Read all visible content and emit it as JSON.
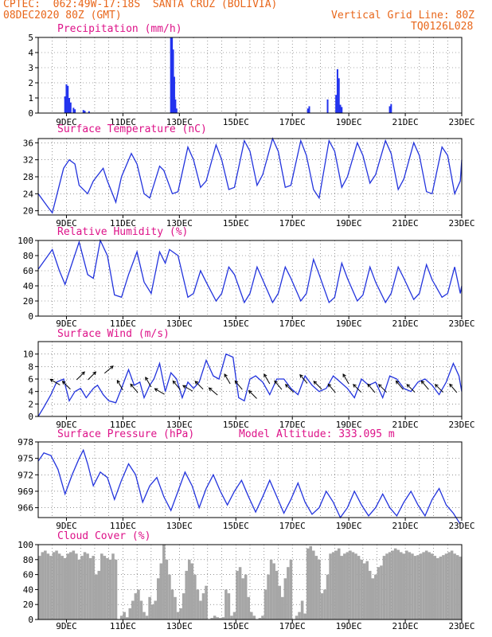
{
  "header": {
    "line1": "CPTEC:  062:49W-17:18S  SANTA CRUZ (BOLIVIA)",
    "date": "08DEC2020 80Z (GMT)",
    "grid_note": "Vertical Grid Line: 80Z",
    "model_code": "TQ0126L028"
  },
  "colors": {
    "accent": "#e8661a",
    "title": "#dd1188",
    "line": "#2233dd",
    "bar": "#2233ee",
    "cloud": "#a6a6a6"
  },
  "x_tick_labels": [
    "9DEC",
    "11DEC",
    "13DEC",
    "15DEC",
    "17DEC",
    "19DEC",
    "21DEC",
    "23DEC"
  ],
  "chart_data": [
    {
      "type": "bar",
      "title": "Precipitation (mm/h)",
      "x_unit": "days since 08DEC2020 00Z",
      "xlim": [
        0.0,
        15.0
      ],
      "ylim": [
        0,
        5
      ],
      "yticks": [
        0,
        1,
        2,
        3,
        4,
        5
      ],
      "grid": true,
      "x": [
        0.95,
        1.0,
        1.05,
        1.1,
        1.15,
        1.25,
        1.3,
        1.6,
        1.65,
        1.8,
        4.7,
        4.74,
        4.78,
        4.82,
        4.86,
        4.9,
        9.55,
        9.6,
        10.25,
        10.55,
        10.6,
        10.65,
        10.7,
        10.75,
        12.45,
        12.5
      ],
      "values": [
        1.1,
        1.9,
        1.8,
        1.0,
        0.7,
        0.35,
        0.25,
        0.2,
        0.15,
        0.12,
        5.0,
        5.0,
        4.2,
        2.4,
        0.9,
        0.3,
        0.3,
        0.45,
        0.9,
        1.2,
        2.9,
        2.3,
        0.55,
        0.4,
        0.45,
        0.6
      ]
    },
    {
      "type": "line",
      "title": "Surface Temperature (nC)",
      "x_unit": "days since 08DEC2020 00Z",
      "xlim": [
        0.0,
        15.0
      ],
      "ylim": [
        19,
        37
      ],
      "yticks": [
        20,
        24,
        28,
        32,
        36
      ],
      "grid": true,
      "x": [
        0.0,
        0.35,
        0.5,
        0.9,
        1.1,
        1.3,
        1.45,
        1.75,
        1.95,
        2.3,
        2.45,
        2.75,
        2.95,
        3.3,
        3.5,
        3.75,
        3.95,
        4.3,
        4.45,
        4.75,
        4.95,
        5.3,
        5.5,
        5.75,
        5.95,
        6.3,
        6.5,
        6.75,
        6.95,
        7.3,
        7.5,
        7.75,
        7.95,
        8.3,
        8.5,
        8.75,
        8.95,
        9.3,
        9.5,
        9.75,
        9.95,
        10.3,
        10.5,
        10.75,
        10.95,
        11.3,
        11.5,
        11.75,
        11.95,
        12.3,
        12.5,
        12.75,
        12.95,
        13.3,
        13.5,
        13.75,
        13.95,
        14.3,
        14.5,
        14.75,
        14.95,
        15.0
      ],
      "values": [
        24,
        20.8,
        19.5,
        30,
        32,
        31,
        26,
        24,
        27,
        30,
        27,
        22,
        28,
        33.5,
        31,
        24,
        23,
        30.5,
        29.5,
        24,
        24.5,
        35,
        32,
        25.5,
        27,
        35.5,
        32,
        25,
        25.5,
        36.5,
        34,
        26,
        28.5,
        37,
        34,
        25.5,
        26,
        36.5,
        33,
        25,
        23,
        36.5,
        34,
        25.5,
        28,
        36,
        33,
        26.5,
        28.5,
        36.5,
        33.5,
        25,
        27.5,
        36,
        33,
        24.5,
        24,
        35,
        33,
        24,
        27,
        32
      ]
    },
    {
      "type": "line",
      "title": "Relative Humidity (%)",
      "x_unit": "days since 08DEC2020 00Z",
      "xlim": [
        0.0,
        15.0
      ],
      "ylim": [
        0,
        100
      ],
      "yticks": [
        0,
        20,
        40,
        60,
        80,
        100
      ],
      "grid": true,
      "x": [
        0.0,
        0.5,
        0.75,
        0.95,
        1.45,
        1.75,
        1.95,
        2.2,
        2.45,
        2.7,
        2.95,
        3.2,
        3.5,
        3.75,
        4.0,
        4.3,
        4.5,
        4.65,
        4.95,
        5.3,
        5.5,
        5.75,
        5.95,
        6.3,
        6.5,
        6.75,
        6.95,
        7.3,
        7.5,
        7.75,
        7.95,
        8.3,
        8.5,
        8.75,
        8.95,
        9.3,
        9.5,
        9.75,
        9.95,
        10.3,
        10.5,
        10.75,
        10.95,
        11.3,
        11.5,
        11.75,
        11.95,
        12.3,
        12.5,
        12.75,
        12.95,
        13.3,
        13.5,
        13.75,
        13.95,
        14.3,
        14.5,
        14.75,
        14.95,
        15.0
      ],
      "values": [
        62,
        88,
        60,
        42,
        98,
        55,
        50,
        100,
        80,
        28,
        25,
        55,
        85,
        45,
        30,
        85,
        70,
        88,
        80,
        25,
        30,
        60,
        45,
        20,
        30,
        65,
        55,
        18,
        30,
        65,
        48,
        18,
        30,
        65,
        50,
        20,
        30,
        75,
        55,
        18,
        25,
        70,
        50,
        20,
        28,
        65,
        45,
        18,
        30,
        65,
        50,
        22,
        30,
        68,
        48,
        25,
        30,
        65,
        30,
        40
      ]
    },
    {
      "type": "line",
      "title": "Surface Wind (m/s)",
      "x_unit": "days since 08DEC2020 00Z",
      "xlim": [
        0.0,
        15.0
      ],
      "ylim": [
        0,
        12
      ],
      "yticks": [
        0,
        2,
        4,
        6,
        8,
        10
      ],
      "grid": true,
      "x": [
        0.0,
        0.2,
        0.45,
        0.65,
        0.9,
        1.1,
        1.3,
        1.5,
        1.7,
        1.95,
        2.1,
        2.3,
        2.5,
        2.75,
        2.95,
        3.2,
        3.4,
        3.6,
        3.75,
        3.95,
        4.1,
        4.3,
        4.5,
        4.7,
        4.9,
        5.1,
        5.3,
        5.5,
        5.7,
        5.95,
        6.2,
        6.4,
        6.65,
        6.9,
        7.1,
        7.3,
        7.5,
        7.7,
        7.95,
        8.2,
        8.45,
        8.7,
        8.95,
        9.2,
        9.45,
        9.7,
        9.95,
        10.2,
        10.45,
        10.7,
        10.95,
        11.2,
        11.45,
        11.7,
        11.95,
        12.2,
        12.45,
        12.7,
        12.95,
        13.2,
        13.45,
        13.7,
        13.95,
        14.2,
        14.45,
        14.7,
        14.9,
        15.0
      ],
      "values": [
        0,
        1.5,
        3.5,
        5.5,
        6,
        2.5,
        4,
        4.5,
        3,
        4.5,
        5,
        3.5,
        2.5,
        2.2,
        4.5,
        7.5,
        5,
        5.5,
        3,
        5,
        6,
        8.5,
        4,
        7,
        6,
        3,
        5.5,
        4.5,
        5.5,
        9,
        6.5,
        6,
        10,
        9.5,
        3,
        2.5,
        6,
        6.5,
        5.5,
        3.5,
        6,
        6,
        4.5,
        3.5,
        6.5,
        5,
        4,
        4.5,
        6.5,
        5.5,
        4.5,
        3,
        6,
        5,
        5.5,
        3,
        6.5,
        6,
        4.5,
        4,
        5.5,
        6,
        5,
        3.5,
        5.5,
        8.5,
        6.5,
        4
      ]
    },
    {
      "type": "line",
      "title": "Surface Pressure (hPa)",
      "annotation": "Model Altitude: 333.095 m",
      "x_unit": "days since 08DEC2020 00Z",
      "xlim": [
        0.0,
        15.0
      ],
      "ylim": [
        964.2,
        978
      ],
      "yticks": [
        966,
        969,
        972,
        975,
        978
      ],
      "grid": true,
      "x": [
        0.0,
        0.2,
        0.45,
        0.7,
        0.95,
        1.2,
        1.45,
        1.6,
        1.75,
        1.95,
        2.2,
        2.45,
        2.7,
        2.95,
        3.2,
        3.45,
        3.7,
        3.95,
        4.2,
        4.45,
        4.7,
        4.95,
        5.2,
        5.45,
        5.7,
        5.95,
        6.2,
        6.45,
        6.7,
        6.95,
        7.2,
        7.45,
        7.7,
        7.95,
        8.2,
        8.45,
        8.7,
        8.95,
        9.2,
        9.45,
        9.7,
        9.95,
        10.2,
        10.45,
        10.7,
        10.95,
        11.2,
        11.45,
        11.7,
        11.95,
        12.2,
        12.45,
        12.7,
        12.95,
        13.2,
        13.45,
        13.7,
        13.95,
        14.2,
        14.45,
        14.7,
        14.95
      ],
      "values": [
        974.5,
        976,
        975.5,
        973,
        968.5,
        972,
        975,
        976.5,
        974,
        970,
        972.5,
        971.5,
        967.5,
        971,
        974,
        972,
        967,
        970,
        971.5,
        968,
        965.5,
        969,
        972.5,
        970,
        966,
        969.5,
        972,
        969,
        966.5,
        969,
        971,
        968,
        965.2,
        968,
        971,
        968,
        965,
        967.5,
        970.5,
        967,
        964.8,
        966,
        969,
        967,
        964.2,
        966,
        969,
        966.5,
        964.5,
        966,
        968.5,
        966,
        964.5,
        967,
        969,
        966.5,
        964.5,
        967.5,
        969.5,
        966.5,
        965,
        963
      ]
    },
    {
      "type": "bar",
      "title": "Cloud Cover (%)",
      "x_unit": "days since 08DEC2020 00Z",
      "xlim": [
        0.0,
        15.0
      ],
      "ylim": [
        0,
        100
      ],
      "yticks": [
        0,
        20,
        40,
        60,
        80,
        100
      ],
      "grid": true,
      "x": [
        0.0,
        0.1,
        0.2,
        0.3,
        0.4,
        0.5,
        0.6,
        0.7,
        0.8,
        0.9,
        1.0,
        1.1,
        1.2,
        1.3,
        1.4,
        1.5,
        1.6,
        1.7,
        1.8,
        1.9,
        2.0,
        2.1,
        2.2,
        2.3,
        2.4,
        2.5,
        2.6,
        2.7,
        2.8,
        2.9,
        3.0,
        3.1,
        3.2,
        3.3,
        3.4,
        3.5,
        3.6,
        3.7,
        3.8,
        3.9,
        4.0,
        4.1,
        4.2,
        4.3,
        4.4,
        4.5,
        4.6,
        4.7,
        4.8,
        4.9,
        5.0,
        5.1,
        5.2,
        5.3,
        5.4,
        5.5,
        5.6,
        5.7,
        5.8,
        5.9,
        6.0,
        6.1,
        6.2,
        6.3,
        6.4,
        6.5,
        6.6,
        6.7,
        6.8,
        6.9,
        7.0,
        7.1,
        7.2,
        7.3,
        7.4,
        7.5,
        7.6,
        7.7,
        7.8,
        7.9,
        8.0,
        8.1,
        8.2,
        8.3,
        8.4,
        8.5,
        8.6,
        8.7,
        8.8,
        8.9,
        9.0,
        9.1,
        9.2,
        9.3,
        9.4,
        9.5,
        9.6,
        9.7,
        9.8,
        9.9,
        10.0,
        10.1,
        10.2,
        10.3,
        10.4,
        10.5,
        10.6,
        10.7,
        10.8,
        10.9,
        11.0,
        11.1,
        11.2,
        11.3,
        11.4,
        11.5,
        11.6,
        11.7,
        11.8,
        11.9,
        12.0,
        12.1,
        12.2,
        12.3,
        12.4,
        12.5,
        12.6,
        12.7,
        12.8,
        12.9,
        13.0,
        13.1,
        13.2,
        13.3,
        13.4,
        13.5,
        13.6,
        13.7,
        13.8,
        13.9,
        14.0,
        14.1,
        14.2,
        14.3,
        14.4,
        14.5,
        14.6,
        14.7,
        14.8,
        14.9
      ],
      "values": [
        85,
        90,
        92,
        88,
        85,
        90,
        92,
        88,
        85,
        82,
        88,
        90,
        92,
        88,
        80,
        85,
        90,
        88,
        82,
        85,
        60,
        65,
        88,
        85,
        82,
        80,
        88,
        80,
        0,
        5,
        10,
        3,
        15,
        25,
        35,
        40,
        25,
        10,
        5,
        30,
        20,
        25,
        55,
        75,
        100,
        80,
        60,
        40,
        30,
        10,
        15,
        35,
        65,
        80,
        75,
        60,
        40,
        25,
        35,
        45,
        0,
        2,
        5,
        3,
        2,
        3,
        40,
        35,
        5,
        10,
        65,
        70,
        55,
        60,
        30,
        10,
        5,
        0,
        2,
        5,
        40,
        60,
        80,
        75,
        65,
        45,
        30,
        55,
        70,
        80,
        0,
        5,
        10,
        25,
        8,
        95,
        98,
        92,
        85,
        80,
        35,
        40,
        60,
        88,
        90,
        92,
        95,
        85,
        88,
        90,
        92,
        90,
        88,
        85,
        80,
        75,
        78,
        65,
        55,
        60,
        70,
        72,
        85,
        88,
        90,
        92,
        95,
        93,
        90,
        88,
        92,
        90,
        88,
        85,
        86,
        88,
        90,
        92,
        90,
        88,
        85,
        82,
        84,
        86,
        88,
        90,
        92,
        88,
        86,
        84
      ]
    },
    {
      "type": "scatter",
      "title": "Surface Wind direction arrows",
      "x_unit": "days since 08DEC2020 00Z",
      "xlim": [
        0.0,
        15.0
      ],
      "x": [
        0.6,
        1.0,
        1.5,
        1.9,
        2.5,
        2.9,
        3.4,
        3.9,
        4.3,
        4.9,
        5.3,
        5.7,
        6.2,
        6.7,
        7.1,
        7.6,
        8.1,
        8.5,
        8.9,
        9.4,
        9.9,
        10.4,
        10.9,
        11.3,
        11.8,
        12.2,
        12.8,
        13.2,
        13.7,
        14.2,
        14.7
      ],
      "values": [
        5.5,
        5,
        6.5,
        6.5,
        7.5,
        5,
        4.5,
        5.5,
        4,
        5,
        4.5,
        5,
        4,
        6,
        5,
        3.5,
        6,
        5,
        4.5,
        6,
        5,
        4.5,
        6,
        4.5,
        4.5,
        4.5,
        5,
        4.5,
        5,
        4.5,
        4.5
      ],
      "direction_deg": [
        300,
        315,
        45,
        45,
        50,
        330,
        320,
        330,
        300,
        320,
        300,
        315,
        310,
        330,
        320,
        315,
        330,
        320,
        315,
        320,
        315,
        320,
        330,
        315,
        320,
        315,
        320,
        315,
        320,
        315,
        320
      ]
    }
  ]
}
